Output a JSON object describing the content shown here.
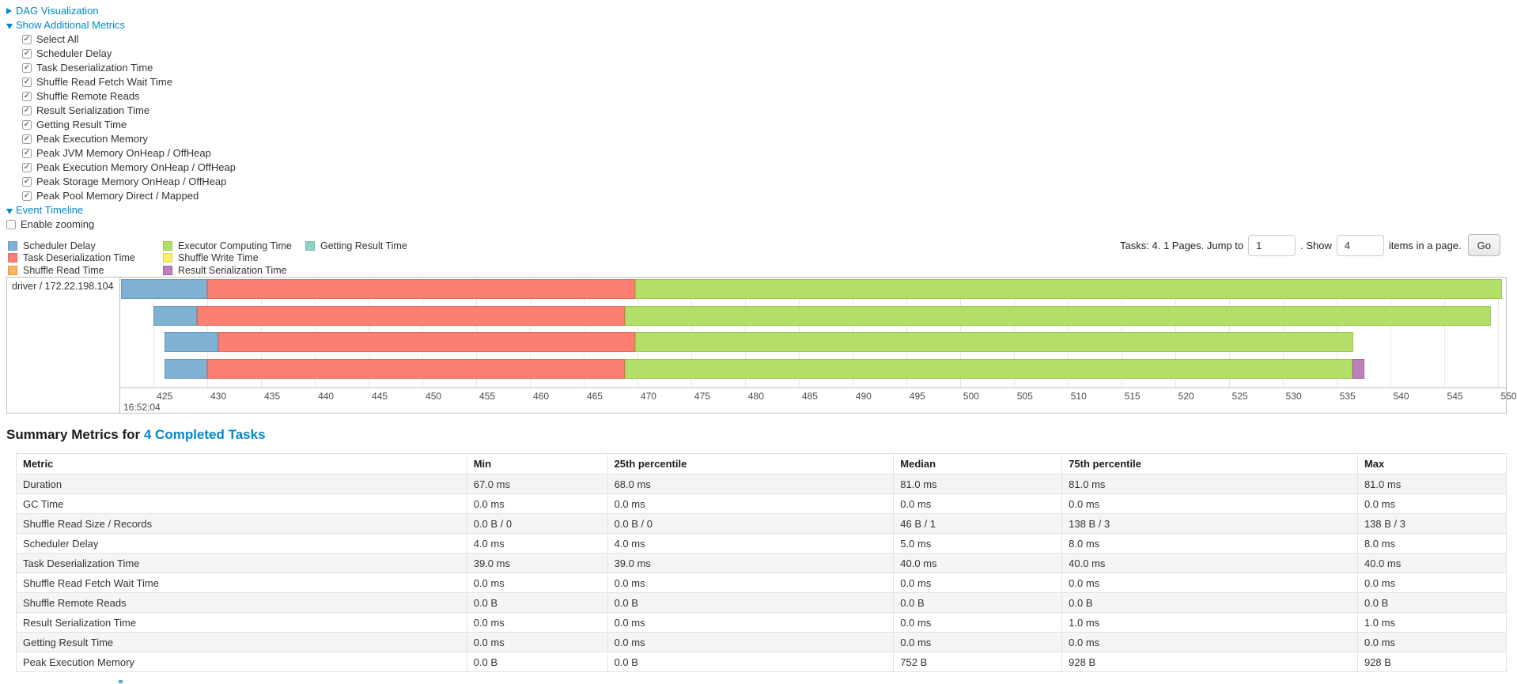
{
  "colors": {
    "link": "#0088cc"
  },
  "controls": {
    "dag_label": "DAG Visualization",
    "metrics_label": "Show Additional Metrics",
    "metric_checkboxes": [
      {
        "label": "Select All",
        "checked": true
      },
      {
        "label": "Scheduler Delay",
        "checked": true
      },
      {
        "label": "Task Deserialization Time",
        "checked": true
      },
      {
        "label": "Shuffle Read Fetch Wait Time",
        "checked": true
      },
      {
        "label": "Shuffle Remote Reads",
        "checked": true
      },
      {
        "label": "Result Serialization Time",
        "checked": true
      },
      {
        "label": "Getting Result Time",
        "checked": true
      },
      {
        "label": "Peak Execution Memory",
        "checked": true
      },
      {
        "label": "Peak JVM Memory OnHeap / OffHeap",
        "checked": true
      },
      {
        "label": "Peak Execution Memory OnHeap / OffHeap",
        "checked": true
      },
      {
        "label": "Peak Storage Memory OnHeap / OffHeap",
        "checked": true
      },
      {
        "label": "Peak Pool Memory Direct / Mapped",
        "checked": true
      }
    ],
    "event_timeline_label": "Event Timeline",
    "enable_zooming": {
      "label": "Enable zooming",
      "checked": false
    }
  },
  "pagination": {
    "prefix": "Tasks: 4. 1 Pages. Jump to",
    "jump_value": "1",
    "mid": ". Show",
    "show_value": "4",
    "suffix": "items in a page.",
    "go_label": "Go"
  },
  "timeline": {
    "row_label": "driver / 172.22.198.104",
    "major_label": "16:52:04",
    "window": {
      "start": 421.9,
      "end": 550.77
    },
    "ticks": [
      425,
      430,
      435,
      440,
      445,
      450,
      455,
      460,
      465,
      470,
      475,
      480,
      485,
      490,
      495,
      500,
      505,
      510,
      515,
      520,
      525,
      530,
      535,
      540,
      545,
      550
    ],
    "series": {
      "scheduler_delay": {
        "label": "Scheduler Delay",
        "fill": "#80B1D3",
        "border": "#6A99BE"
      },
      "task_deserialization": {
        "label": "Task Deserialization Time",
        "fill": "#FB8072",
        "border": "#E26A5C"
      },
      "shuffle_read": {
        "label": "Shuffle Read Time",
        "fill": "#FDB462",
        "border": "#E09A47"
      },
      "executor_computing": {
        "label": "Executor Computing Time",
        "fill": "#B3DE69",
        "border": "#9CC94F"
      },
      "shuffle_write": {
        "label": "Shuffle Write Time",
        "fill": "#FFED6F",
        "border": "#E5D254"
      },
      "result_serialization": {
        "label": "Result Serialization Time",
        "fill": "#BC80BD",
        "border": "#A363A5"
      },
      "getting_result": {
        "label": "Getting Result Time",
        "fill": "#8DD3C7",
        "border": "#72B8AB"
      }
    },
    "legend_columns": [
      [
        "scheduler_delay",
        "task_deserialization",
        "shuffle_read"
      ],
      [
        "executor_computing",
        "shuffle_write",
        "result_serialization"
      ],
      [
        "getting_result"
      ]
    ],
    "tasks": [
      {
        "segments": [
          {
            "type": "scheduler_delay",
            "start": 422.0,
            "end": 430.0
          },
          {
            "type": "task_deserialization",
            "start": 430.0,
            "end": 469.8
          },
          {
            "type": "executor_computing",
            "start": 469.8,
            "end": 550.4
          }
        ]
      },
      {
        "segments": [
          {
            "type": "scheduler_delay",
            "start": 425.0,
            "end": 429.0
          },
          {
            "type": "task_deserialization",
            "start": 429.0,
            "end": 468.8
          },
          {
            "type": "executor_computing",
            "start": 468.8,
            "end": 549.4
          }
        ]
      },
      {
        "segments": [
          {
            "type": "scheduler_delay",
            "start": 426.0,
            "end": 431.0
          },
          {
            "type": "task_deserialization",
            "start": 431.0,
            "end": 469.8
          },
          {
            "type": "executor_computing",
            "start": 469.8,
            "end": 536.6
          }
        ]
      },
      {
        "segments": [
          {
            "type": "scheduler_delay",
            "start": 426.0,
            "end": 430.0
          },
          {
            "type": "task_deserialization",
            "start": 430.0,
            "end": 468.8
          },
          {
            "type": "executor_computing",
            "start": 468.8,
            "end": 536.5
          },
          {
            "type": "result_serialization",
            "start": 536.5,
            "end": 537.6
          }
        ]
      }
    ]
  },
  "summary": {
    "heading_prefix": "Summary Metrics for",
    "heading_link": "4 Completed Tasks",
    "table": {
      "headers": [
        "Metric",
        "Min",
        "25th percentile",
        "Median",
        "75th percentile",
        "Max"
      ],
      "col_widths_pct": [
        30.24,
        9.44,
        19.2,
        11.3,
        19.84,
        9.98
      ],
      "rows": [
        [
          "Duration",
          "67.0 ms",
          "68.0 ms",
          "81.0 ms",
          "81.0 ms",
          "81.0 ms"
        ],
        [
          "GC Time",
          "0.0 ms",
          "0.0 ms",
          "0.0 ms",
          "0.0 ms",
          "0.0 ms"
        ],
        [
          "Shuffle Read Size / Records",
          "0.0 B / 0",
          "0.0 B / 0",
          "46 B / 1",
          "138 B / 3",
          "138 B / 3"
        ],
        [
          "Scheduler Delay",
          "4.0 ms",
          "4.0 ms",
          "5.0 ms",
          "8.0 ms",
          "8.0 ms"
        ],
        [
          "Task Deserialization Time",
          "39.0 ms",
          "39.0 ms",
          "40.0 ms",
          "40.0 ms",
          "40.0 ms"
        ],
        [
          "Shuffle Read Fetch Wait Time",
          "0.0 ms",
          "0.0 ms",
          "0.0 ms",
          "0.0 ms",
          "0.0 ms"
        ],
        [
          "Shuffle Remote Reads",
          "0.0 B",
          "0.0 B",
          "0.0 B",
          "0.0 B",
          "0.0 B"
        ],
        [
          "Result Serialization Time",
          "0.0 ms",
          "0.0 ms",
          "0.0 ms",
          "1.0 ms",
          "1.0 ms"
        ],
        [
          "Getting Result Time",
          "0.0 ms",
          "0.0 ms",
          "0.0 ms",
          "0.0 ms",
          "0.0 ms"
        ],
        [
          "Peak Execution Memory",
          "0.0 B",
          "0.0 B",
          "752 B",
          "928 B",
          "928 B"
        ]
      ]
    }
  }
}
